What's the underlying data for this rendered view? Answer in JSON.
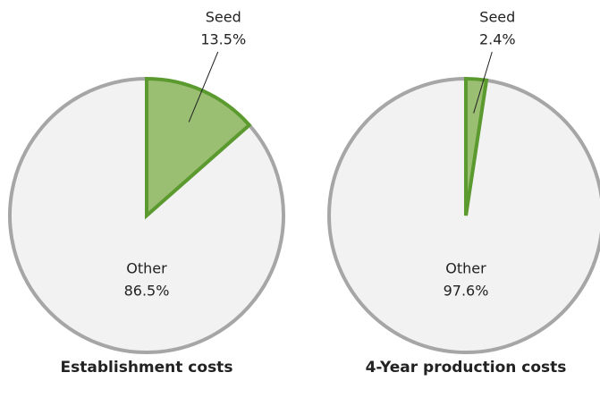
{
  "chart_data": [
    {
      "type": "pie",
      "title": "Establishment costs",
      "categories": [
        "Seed",
        "Other"
      ],
      "values": [
        13.5,
        86.5
      ],
      "value_labels": [
        "13.5%",
        "86.5%"
      ],
      "colors": [
        "#9bbf72",
        "#f2f2f2"
      ],
      "edge_colors": [
        "#5a9a2e",
        "#a6a6a6"
      ]
    },
    {
      "type": "pie",
      "title": "4-Year production costs",
      "categories": [
        "Seed",
        "Other"
      ],
      "values": [
        2.4,
        97.6
      ],
      "value_labels": [
        "2.4%",
        "97.6%"
      ],
      "colors": [
        "#9bbf72",
        "#f2f2f2"
      ],
      "edge_colors": [
        "#5a9a2e",
        "#a6a6a6"
      ]
    }
  ]
}
